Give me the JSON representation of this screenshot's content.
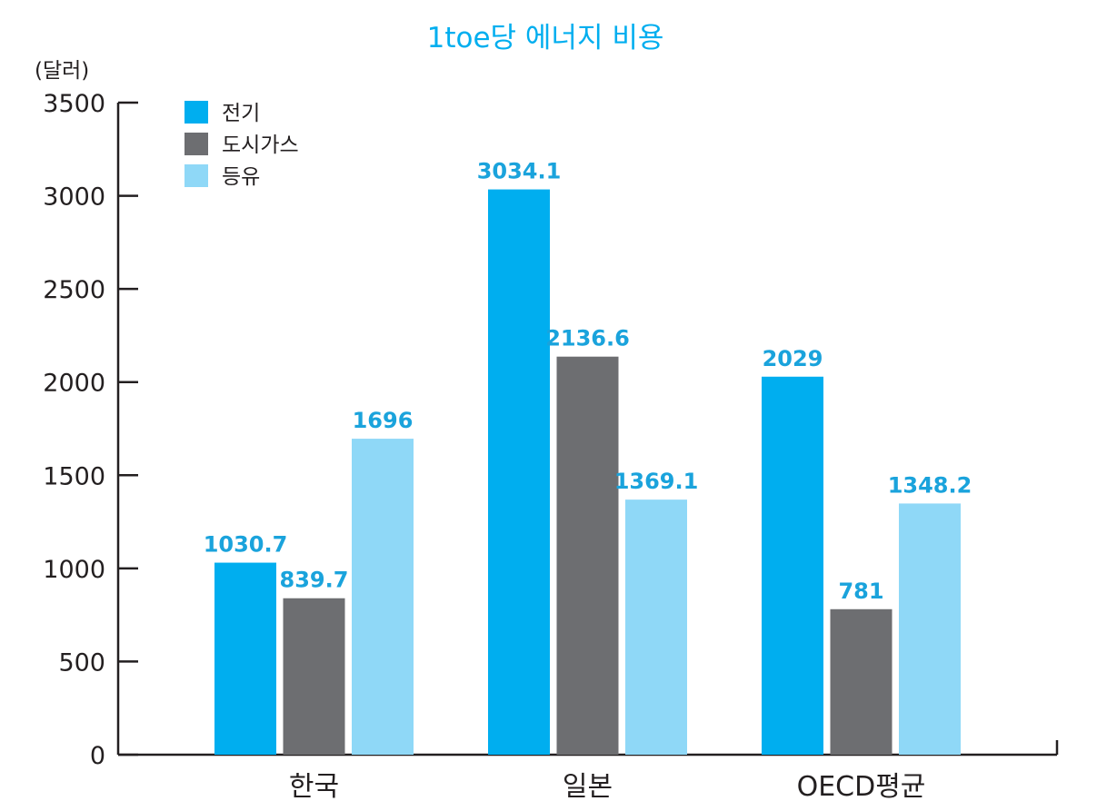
{
  "chart_data": {
    "type": "bar",
    "title": "1toe당 에너지 비용",
    "ylabel": "(달러)",
    "xlabel": "",
    "categories": [
      "한국",
      "일본",
      "OECD평균"
    ],
    "series": [
      {
        "name": "전기",
        "values": [
          1030.7,
          3034.1,
          2029
        ],
        "color": "#00aeef"
      },
      {
        "name": "도시가스",
        "values": [
          839.7,
          2136.6,
          781
        ],
        "color": "#6d6e71"
      },
      {
        "name": "등유",
        "values": [
          1696,
          1369.1,
          1348.2
        ],
        "color": "#8fd8f7"
      }
    ],
    "ylim": [
      0,
      3500
    ],
    "yticks": [
      "0",
      "500",
      "1000",
      "1500",
      "2000",
      "2500",
      "3000",
      "3500"
    ],
    "data_labels": [
      [
        "1030.7",
        "3034.1",
        "2029"
      ],
      [
        "839.7",
        "2136.6",
        "781"
      ],
      [
        "1696",
        "1369.1",
        "1348.2"
      ]
    ],
    "legend_position": "top-left",
    "grid": false,
    "title_color": "#00aeef",
    "data_label_color": "#1aa3dc",
    "axis_color": "#231f20"
  }
}
